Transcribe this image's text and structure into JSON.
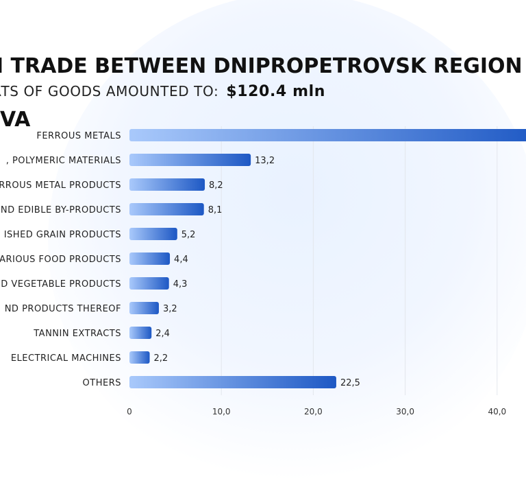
{
  "title": {
    "line1": "N TRADE BETWEEN DNIPROPETROVSK REGION",
    "line2": "VA"
  },
  "subtitle": {
    "label": "ORTS OF GOODS AMOUNTED TO:",
    "amount": "$120.4 mln"
  },
  "colors": {
    "bar_light": "#a9c9fb",
    "bar_dark": "#1d58c4",
    "grid": "#e3e6ec",
    "text": "#222222"
  },
  "chart_data": {
    "type": "bar",
    "orientation": "horizontal",
    "categories": [
      "FERROUS METALS",
      ", POLYMERIC MATERIALS",
      "RROUS METAL PRODUCTS",
      "ND EDIBLE BY-PRODUCTS",
      "ISHED GRAIN PRODUCTS",
      "ARIOUS FOOD PRODUCTS",
      "D VEGETABLE PRODUCTS",
      "ND PRODUCTS THEREOF",
      "TANNIN EXTRACTS",
      "ELECTRICAL MACHINES",
      "OTHERS"
    ],
    "values": [
      44.9,
      13.2,
      8.2,
      8.1,
      5.2,
      4.4,
      4.3,
      3.2,
      2.4,
      2.2,
      22.5
    ],
    "value_labels": [
      "",
      "13,2",
      "8,2",
      "8,1",
      "5,2",
      "4,4",
      "4,3",
      "3,2",
      "2,4",
      "2,2",
      "22,5"
    ],
    "x_ticks": [
      0,
      10,
      20,
      30,
      40
    ],
    "x_tick_labels": [
      "0",
      "10,0",
      "20,0",
      "30,0",
      "40,0"
    ],
    "xlim": [
      0,
      50
    ],
    "grid": true
  }
}
